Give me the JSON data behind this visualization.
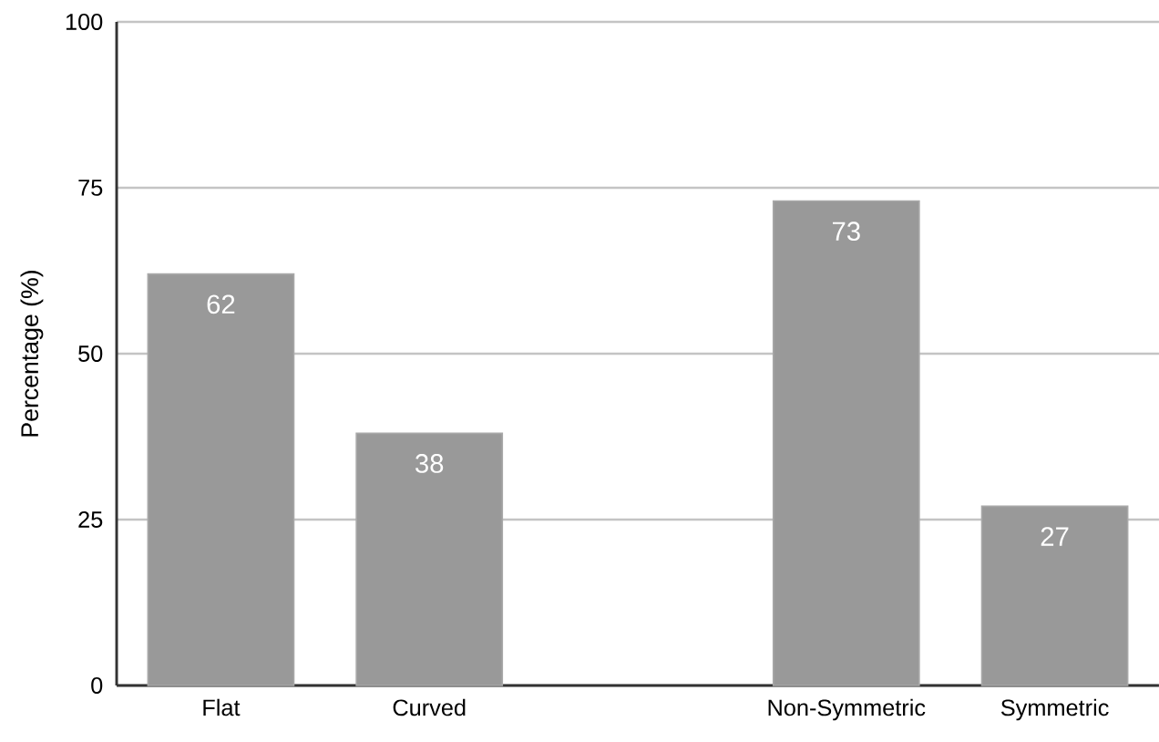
{
  "chart_data": {
    "type": "bar",
    "ylabel": "Percentage (%)",
    "categories": [
      "Flat",
      "Curved",
      null,
      "Non-Symmetric",
      "Symmetric"
    ],
    "values": [
      62,
      38,
      null,
      73,
      27
    ],
    "color": "#999999",
    "ylim": [
      0,
      100
    ],
    "yticks": [
      0,
      25,
      50,
      75,
      100
    ],
    "grid": "y",
    "data_labels": true
  }
}
